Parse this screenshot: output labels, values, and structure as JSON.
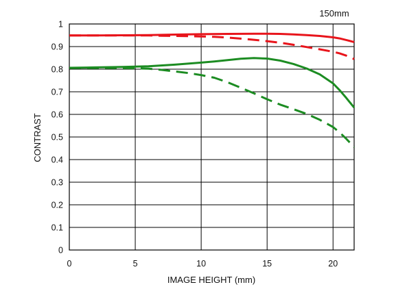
{
  "chart_data": {
    "type": "line",
    "annotation": "150mm",
    "xlabel": "IMAGE HEIGHT (mm)",
    "ylabel": "CONTRAST",
    "xlim": [
      0,
      21.6
    ],
    "ylim": [
      0,
      1
    ],
    "x_ticks": [
      0,
      5,
      10,
      15,
      20
    ],
    "y_ticks": [
      0,
      0.1,
      0.2,
      0.3,
      0.4,
      0.5,
      0.6,
      0.7,
      0.8,
      0.9,
      1
    ],
    "y_tick_labels": [
      "0",
      "0.1",
      "0.2",
      "0.3",
      "0.4",
      "0.5",
      "0.6",
      "0.7",
      "0.8",
      "0.9",
      "1"
    ],
    "grid": true,
    "colors": {
      "red": "#e8141b",
      "green": "#1c8c22",
      "grid": "#000000"
    },
    "series": [
      {
        "color": "red",
        "style": "solid",
        "x": [
          0,
          2,
          4,
          6,
          8,
          10,
          12,
          14,
          15,
          16,
          17,
          18,
          19,
          20,
          20.5,
          21,
          21.6
        ],
        "y": [
          0.949,
          0.949,
          0.95,
          0.951,
          0.953,
          0.955,
          0.956,
          0.957,
          0.957,
          0.956,
          0.954,
          0.951,
          0.947,
          0.941,
          0.936,
          0.929,
          0.92
        ]
      },
      {
        "color": "red",
        "style": "dashed",
        "x": [
          0,
          2,
          4,
          6,
          7,
          8,
          9,
          10,
          11,
          12,
          13,
          14,
          15,
          16,
          17,
          18,
          19,
          20,
          20.5,
          21,
          21.6
        ],
        "y": [
          0.949,
          0.949,
          0.949,
          0.949,
          0.948,
          0.947,
          0.946,
          0.945,
          0.943,
          0.94,
          0.935,
          0.93,
          0.924,
          0.917,
          0.908,
          0.898,
          0.888,
          0.877,
          0.87,
          0.86,
          0.845
        ]
      },
      {
        "color": "green",
        "style": "solid",
        "x": [
          0,
          2,
          4,
          6,
          8,
          10,
          11,
          12,
          13,
          14,
          15,
          16,
          17,
          18,
          19,
          20,
          20.5,
          21,
          21.6
        ],
        "y": [
          0.806,
          0.808,
          0.81,
          0.813,
          0.82,
          0.829,
          0.834,
          0.84,
          0.846,
          0.849,
          0.847,
          0.838,
          0.823,
          0.803,
          0.777,
          0.737,
          0.707,
          0.673,
          0.63
        ]
      },
      {
        "color": "green",
        "style": "dashed",
        "x": [
          0,
          2,
          4,
          5,
          6,
          7,
          8,
          9,
          10,
          11,
          12,
          13,
          14,
          15,
          16,
          17,
          18,
          19,
          20,
          20.5,
          21,
          21.6
        ],
        "y": [
          0.805,
          0.805,
          0.805,
          0.804,
          0.802,
          0.797,
          0.79,
          0.783,
          0.774,
          0.762,
          0.742,
          0.718,
          0.693,
          0.667,
          0.643,
          0.623,
          0.602,
          0.576,
          0.544,
          0.52,
          0.492,
          0.455
        ]
      }
    ]
  }
}
